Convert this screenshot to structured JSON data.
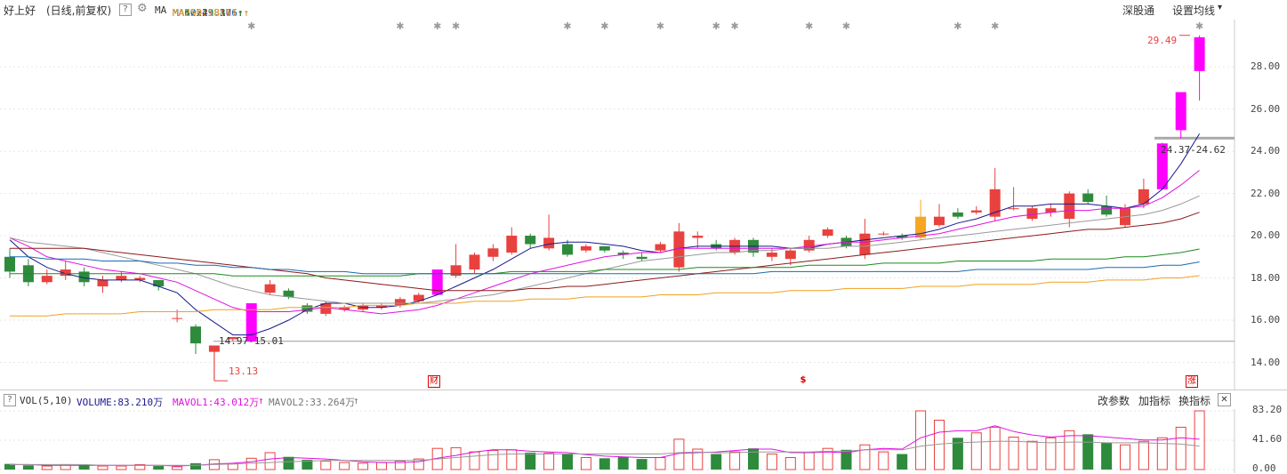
{
  "stock": {
    "name": "好上好",
    "mode": "(日线,前复权)"
  },
  "ma": {
    "label": "MA",
    "items": [
      {
        "text": "MA5:24.83",
        "color": "#1a1a8c",
        "arrow": "↑"
      },
      {
        "text": "MA10:23.10",
        "color": "#e010e0",
        "arrow": "↑"
      },
      {
        "text": "MA20:21.89",
        "color": "#888888",
        "arrow": "↑"
      },
      {
        "text": "MA30:21.11",
        "color": "#8b1a1a",
        "arrow": "↑"
      },
      {
        "text": "MA60:19.37",
        "color": "#1a8c1a",
        "arrow": "↑"
      },
      {
        "text": "MA120:18.76",
        "color": "#1a6ab0",
        "arrow": "↑"
      },
      {
        "text": "MA250:18.11",
        "color": "#f0a020",
        "arrow": "↑"
      }
    ]
  },
  "toolbar": {
    "shenzhen": "深股通",
    "set_ma": "设置均线",
    "dropdown": "▾"
  },
  "price_axis": [
    "28.00",
    "26.00",
    "24.00",
    "22.00",
    "20.00",
    "18.00",
    "16.00",
    "14.00"
  ],
  "annotations": {
    "high": "29.49",
    "low": "13.13",
    "range_low": "14.97-15.01",
    "range_high": "24.37-24.62",
    "evt_cai": "财",
    "evt_s": "$",
    "evt_zhang": "涨"
  },
  "vol_bar": {
    "q": "?",
    "vol": "VOL(5,10)",
    "volume": "VOLUME:83.210万",
    "mavol1": "MAVOL1:43.012万",
    "mavol2": "MAVOL2:33.264万",
    "arrow": "↑",
    "change_param": "改参数",
    "add_indicator": "加指标",
    "switch_indicator": "换指标",
    "close": "✕"
  },
  "vol_axis": [
    "83.20",
    "41.60",
    "0.00"
  ],
  "colors": {
    "up": "#e8413e",
    "down": "#2e8b3c",
    "limit": "#ff00ff",
    "orange": "#f5a623"
  },
  "chart_data": {
    "type": "candlestick",
    "y_range": [
      12.8,
      29.9
    ],
    "candles": [
      [
        19.0,
        18.3,
        19.4,
        18.0
      ],
      [
        18.6,
        17.8,
        18.9,
        17.6
      ],
      [
        17.8,
        18.1,
        18.4,
        17.7
      ],
      [
        18.1,
        18.4,
        18.8,
        17.9
      ],
      [
        18.3,
        17.8,
        18.5,
        17.6
      ],
      [
        17.6,
        17.9,
        18.1,
        17.3
      ],
      [
        17.9,
        18.1,
        18.3,
        17.8
      ],
      [
        17.9,
        18.0,
        18.1,
        17.8
      ],
      [
        17.9,
        17.6,
        17.9,
        17.4
      ],
      [
        16.1,
        16.1,
        16.5,
        15.9
      ],
      [
        15.7,
        14.9,
        15.8,
        14.4
      ],
      [
        14.5,
        14.8,
        14.8,
        13.13
      ],
      [
        15.1,
        15.2,
        15.2,
        15.0
      ],
      [
        15.0,
        16.8,
        16.8,
        15.0
      ],
      [
        17.3,
        17.7,
        17.9,
        17.2
      ],
      [
        17.4,
        17.1,
        17.5,
        17.0
      ],
      [
        16.7,
        16.4,
        16.8,
        16.3
      ],
      [
        16.3,
        16.8,
        16.9,
        16.2
      ],
      [
        16.5,
        16.6,
        16.7,
        16.4
      ],
      [
        16.5,
        16.7,
        16.8,
        16.4
      ],
      [
        16.6,
        16.7,
        16.8,
        16.5
      ],
      [
        16.7,
        17.0,
        17.1,
        16.6
      ],
      [
        16.9,
        17.2,
        17.3,
        16.8
      ],
      [
        17.2,
        18.4,
        18.4,
        17.2
      ],
      [
        18.1,
        18.6,
        19.6,
        18.0
      ],
      [
        18.4,
        19.1,
        19.2,
        18.2
      ],
      [
        19.0,
        19.4,
        19.6,
        18.8
      ],
      [
        19.2,
        20.0,
        20.4,
        19.1
      ],
      [
        20.0,
        19.6,
        20.1,
        19.4
      ],
      [
        19.4,
        19.9,
        21.0,
        19.3
      ],
      [
        19.6,
        19.1,
        19.8,
        19.0
      ],
      [
        19.3,
        19.5,
        19.6,
        19.2
      ],
      [
        19.5,
        19.3,
        19.5,
        19.2
      ],
      [
        19.2,
        19.1,
        19.3,
        18.9
      ],
      [
        19.0,
        18.9,
        19.2,
        18.8
      ],
      [
        19.3,
        19.6,
        19.7,
        19.2
      ],
      [
        18.5,
        20.2,
        20.6,
        18.3
      ],
      [
        19.9,
        20.0,
        20.2,
        19.4
      ],
      [
        19.6,
        19.4,
        19.8,
        19.3
      ],
      [
        19.2,
        19.8,
        19.9,
        19.1
      ],
      [
        19.8,
        19.2,
        19.9,
        19.0
      ],
      [
        19.0,
        19.2,
        19.4,
        18.8
      ],
      [
        18.9,
        19.3,
        19.4,
        18.6
      ],
      [
        19.3,
        19.8,
        20.0,
        19.2
      ],
      [
        20.0,
        20.3,
        20.4,
        19.9
      ],
      [
        19.9,
        19.5,
        20.0,
        19.4
      ],
      [
        19.1,
        20.1,
        20.8,
        18.9
      ],
      [
        20.1,
        20.1,
        20.2,
        20.0
      ],
      [
        20.0,
        19.9,
        20.1,
        19.8
      ],
      [
        19.9,
        20.9,
        21.7,
        19.8
      ],
      [
        20.5,
        20.9,
        21.5,
        20.4
      ],
      [
        21.1,
        20.9,
        21.3,
        20.8
      ],
      [
        21.1,
        21.2,
        21.4,
        21.0
      ],
      [
        20.9,
        22.2,
        23.2,
        20.7
      ],
      [
        21.3,
        21.3,
        22.3,
        21.2
      ],
      [
        20.8,
        21.3,
        21.4,
        20.7
      ],
      [
        21.1,
        21.3,
        21.5,
        20.9
      ],
      [
        20.8,
        22.0,
        22.1,
        20.4
      ],
      [
        22.0,
        21.6,
        22.2,
        21.5
      ],
      [
        21.4,
        21.0,
        21.9,
        20.9
      ],
      [
        20.5,
        21.3,
        21.5,
        20.4
      ],
      [
        21.5,
        22.2,
        22.7,
        21.3
      ],
      [
        22.2,
        24.37,
        24.4,
        22.2
      ],
      [
        25.0,
        26.8,
        26.8,
        24.6
      ],
      [
        27.8,
        29.4,
        29.49,
        26.4
      ]
    ],
    "ma": {
      "ma5": [
        19.8,
        19.0,
        18.5,
        18.2,
        18.0,
        17.9,
        17.9,
        17.9,
        17.6,
        17.3,
        16.5,
        15.9,
        15.3,
        15.3,
        15.6,
        16.0,
        16.5,
        16.8,
        16.8,
        16.6,
        16.6,
        16.7,
        16.9,
        17.2,
        17.6,
        18.0,
        18.4,
        18.9,
        19.4,
        19.6,
        19.7,
        19.7,
        19.6,
        19.5,
        19.3,
        19.2,
        19.4,
        19.5,
        19.5,
        19.5,
        19.5,
        19.5,
        19.4,
        19.4,
        19.6,
        19.7,
        19.8,
        19.9,
        20.0,
        20.1,
        20.3,
        20.6,
        20.8,
        21.1,
        21.4,
        21.4,
        21.5,
        21.5,
        21.5,
        21.4,
        21.3,
        21.5,
        22.2,
        23.4,
        24.83
      ],
      "ma10": [
        19.9,
        19.5,
        19.0,
        18.8,
        18.6,
        18.4,
        18.3,
        18.2,
        18.0,
        17.8,
        17.4,
        17.0,
        16.6,
        16.4,
        16.4,
        16.4,
        16.5,
        16.6,
        16.5,
        16.4,
        16.3,
        16.4,
        16.5,
        16.7,
        17.0,
        17.3,
        17.6,
        17.9,
        18.2,
        18.4,
        18.6,
        18.8,
        19.0,
        19.1,
        19.2,
        19.2,
        19.4,
        19.4,
        19.4,
        19.4,
        19.4,
        19.4,
        19.4,
        19.5,
        19.6,
        19.7,
        19.7,
        19.8,
        19.9,
        20.0,
        20.1,
        20.3,
        20.5,
        20.7,
        20.9,
        21.0,
        21.1,
        21.2,
        21.2,
        21.3,
        21.3,
        21.4,
        21.8,
        22.4,
        23.1
      ],
      "ma20": [
        19.9,
        19.7,
        19.6,
        19.5,
        19.4,
        19.2,
        19.0,
        18.8,
        18.6,
        18.4,
        18.2,
        17.9,
        17.6,
        17.4,
        17.2,
        17.1,
        17.0,
        16.9,
        16.8,
        16.8,
        16.8,
        16.8,
        16.8,
        16.9,
        17.0,
        17.1,
        17.2,
        17.4,
        17.6,
        17.8,
        18.0,
        18.2,
        18.4,
        18.6,
        18.8,
        18.9,
        19.0,
        19.1,
        19.2,
        19.2,
        19.3,
        19.3,
        19.4,
        19.4,
        19.4,
        19.5,
        19.5,
        19.6,
        19.7,
        19.8,
        19.9,
        20.0,
        20.1,
        20.2,
        20.3,
        20.4,
        20.5,
        20.6,
        20.7,
        20.8,
        20.9,
        21.0,
        21.2,
        21.5,
        21.89
      ],
      "ma30": [
        19.4,
        19.4,
        19.4,
        19.4,
        19.4,
        19.3,
        19.2,
        19.1,
        19.0,
        18.9,
        18.8,
        18.7,
        18.6,
        18.5,
        18.4,
        18.3,
        18.2,
        18.0,
        17.9,
        17.8,
        17.7,
        17.6,
        17.5,
        17.4,
        17.4,
        17.4,
        17.4,
        17.4,
        17.5,
        17.5,
        17.6,
        17.6,
        17.7,
        17.8,
        17.9,
        18.0,
        18.1,
        18.2,
        18.3,
        18.4,
        18.5,
        18.6,
        18.7,
        18.8,
        18.9,
        19.0,
        19.1,
        19.2,
        19.3,
        19.4,
        19.5,
        19.6,
        19.7,
        19.8,
        19.9,
        20.0,
        20.1,
        20.2,
        20.3,
        20.3,
        20.4,
        20.5,
        20.6,
        20.8,
        21.11
      ],
      "ma60": [
        18.2,
        18.2,
        18.2,
        18.2,
        18.2,
        18.2,
        18.2,
        18.2,
        18.2,
        18.2,
        18.2,
        18.2,
        18.1,
        18.1,
        18.1,
        18.1,
        18.1,
        18.1,
        18.1,
        18.1,
        18.1,
        18.1,
        18.2,
        18.2,
        18.2,
        18.2,
        18.2,
        18.3,
        18.3,
        18.3,
        18.3,
        18.3,
        18.4,
        18.4,
        18.4,
        18.4,
        18.4,
        18.5,
        18.5,
        18.5,
        18.5,
        18.5,
        18.5,
        18.6,
        18.6,
        18.6,
        18.6,
        18.7,
        18.7,
        18.7,
        18.7,
        18.8,
        18.8,
        18.8,
        18.8,
        18.8,
        18.9,
        18.9,
        18.9,
        18.9,
        19.0,
        19.0,
        19.1,
        19.2,
        19.37
      ],
      "ma120": [
        19.0,
        19.0,
        18.9,
        18.9,
        18.9,
        18.8,
        18.8,
        18.8,
        18.7,
        18.7,
        18.6,
        18.6,
        18.5,
        18.5,
        18.4,
        18.4,
        18.3,
        18.3,
        18.3,
        18.2,
        18.2,
        18.2,
        18.2,
        18.2,
        18.2,
        18.2,
        18.2,
        18.2,
        18.2,
        18.2,
        18.2,
        18.2,
        18.2,
        18.2,
        18.2,
        18.2,
        18.2,
        18.2,
        18.2,
        18.2,
        18.2,
        18.3,
        18.3,
        18.3,
        18.3,
        18.3,
        18.3,
        18.3,
        18.3,
        18.3,
        18.3,
        18.3,
        18.4,
        18.4,
        18.4,
        18.4,
        18.4,
        18.4,
        18.4,
        18.5,
        18.5,
        18.5,
        18.6,
        18.6,
        18.76
      ],
      "ma250": [
        16.2,
        16.2,
        16.2,
        16.3,
        16.3,
        16.3,
        16.3,
        16.4,
        16.4,
        16.4,
        16.4,
        16.5,
        16.5,
        16.5,
        16.5,
        16.6,
        16.6,
        16.6,
        16.6,
        16.7,
        16.7,
        16.7,
        16.8,
        16.8,
        16.8,
        16.9,
        16.9,
        16.9,
        17.0,
        17.0,
        17.0,
        17.1,
        17.1,
        17.1,
        17.1,
        17.2,
        17.2,
        17.2,
        17.3,
        17.3,
        17.3,
        17.3,
        17.4,
        17.4,
        17.4,
        17.5,
        17.5,
        17.5,
        17.5,
        17.6,
        17.6,
        17.6,
        17.7,
        17.7,
        17.7,
        17.7,
        17.8,
        17.8,
        17.8,
        17.9,
        17.9,
        17.9,
        18.0,
        18.0,
        18.11
      ]
    },
    "volume": [
      8,
      6,
      5,
      7,
      6,
      5,
      5,
      7,
      5,
      4,
      9,
      14,
      8,
      16,
      24,
      18,
      14,
      12,
      10,
      9,
      10,
      12,
      15,
      30,
      31,
      25,
      27,
      28,
      24,
      23,
      22,
      17,
      16,
      18,
      15,
      17,
      43,
      29,
      22,
      25,
      30,
      22,
      17,
      24,
      30,
      28,
      35,
      25,
      22,
      83.2,
      70,
      45,
      52,
      60,
      46,
      40,
      45,
      55,
      50,
      38,
      35,
      40,
      45,
      60,
      83.21
    ],
    "mavol1": [
      7,
      7,
      6,
      6,
      6,
      6,
      6,
      6,
      6,
      5,
      6,
      8,
      9,
      11,
      15,
      17,
      16,
      15,
      13,
      11,
      10,
      10,
      11,
      16,
      20,
      25,
      28,
      28,
      26,
      25,
      24,
      21,
      19,
      18,
      17,
      17,
      23,
      24,
      25,
      27,
      29,
      29,
      24,
      24,
      25,
      24,
      28,
      30,
      29,
      45,
      53,
      55,
      55,
      62,
      54,
      49,
      46,
      48,
      48,
      46,
      44,
      42,
      42,
      45,
      43.012
    ],
    "mavol2": [
      7,
      7,
      7,
      7,
      7,
      6,
      6,
      6,
      6,
      6,
      6,
      7,
      8,
      9,
      10,
      11,
      12,
      13,
      13,
      13,
      13,
      13,
      13,
      15,
      17,
      19,
      21,
      22,
      22,
      22,
      22,
      22,
      22,
      22,
      22,
      22,
      24,
      25,
      24,
      24,
      25,
      25,
      25,
      25,
      26,
      26,
      28,
      28,
      28,
      33,
      36,
      38,
      39,
      40,
      40,
      39,
      38,
      39,
      39,
      38,
      38,
      38,
      37,
      36,
      33.264
    ]
  }
}
